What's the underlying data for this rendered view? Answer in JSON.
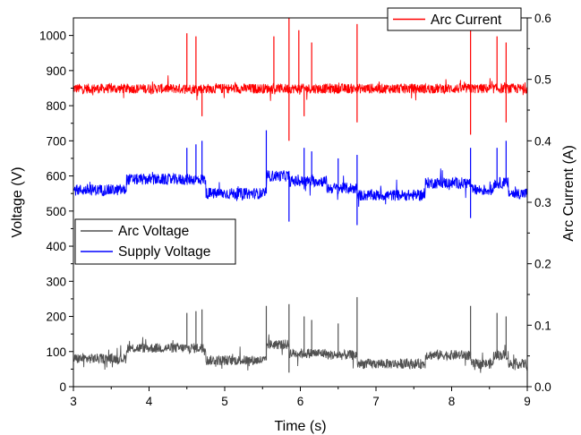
{
  "chart_data": {
    "type": "line",
    "title": "",
    "xlabel": "Time (s)",
    "ylabel": "Voltage (V)",
    "y2label": "Arc Current (A)",
    "xlim": [
      3,
      9
    ],
    "ylim": [
      0,
      1050
    ],
    "y2lim": [
      0,
      0.6
    ],
    "xticks": [
      "3",
      "4",
      "5",
      "6",
      "7",
      "8",
      "9"
    ],
    "yticks": [
      "0",
      "100",
      "200",
      "300",
      "400",
      "500",
      "600",
      "700",
      "800",
      "900",
      "1000"
    ],
    "y2ticks": [
      "0.0",
      "0.1",
      "0.2",
      "0.3",
      "0.4",
      "0.5",
      "0.6"
    ],
    "grid": false,
    "legend_right": {
      "position": "top-right",
      "entries": [
        "Arc Current"
      ]
    },
    "legend_left": {
      "position": "middle-left",
      "entries": [
        "Arc Voltage",
        "Supply Voltage"
      ]
    },
    "series": [
      {
        "name": "Arc Current",
        "axis": "right",
        "color": "#ff0000",
        "baseline_segments": [
          [
            3,
            9,
            0.485
          ]
        ],
        "noise": 0.008,
        "spikes": [
          {
            "x": 4.5,
            "y": 0.575
          },
          {
            "x": 4.62,
            "y": 0.57
          },
          {
            "x": 4.7,
            "y": 0.44
          },
          {
            "x": 5.65,
            "y": 0.57
          },
          {
            "x": 5.85,
            "y": 0.6
          },
          {
            "x": 5.85,
            "y": 0.4
          },
          {
            "x": 5.98,
            "y": 0.58
          },
          {
            "x": 6.05,
            "y": 0.44
          },
          {
            "x": 6.15,
            "y": 0.56
          },
          {
            "x": 6.75,
            "y": 0.59
          },
          {
            "x": 6.75,
            "y": 0.43
          },
          {
            "x": 8.25,
            "y": 0.58
          },
          {
            "x": 8.25,
            "y": 0.41
          },
          {
            "x": 8.6,
            "y": 0.57
          },
          {
            "x": 8.72,
            "y": 0.56
          },
          {
            "x": 8.72,
            "y": 0.43
          }
        ]
      },
      {
        "name": "Supply Voltage",
        "axis": "left",
        "color": "#0000ff",
        "baseline_segments": [
          [
            3,
            3.7,
            560
          ],
          [
            3.7,
            4.75,
            590
          ],
          [
            4.75,
            5.55,
            550
          ],
          [
            5.55,
            5.85,
            600
          ],
          [
            5.85,
            6.35,
            585
          ],
          [
            6.35,
            6.75,
            565
          ],
          [
            6.75,
            7.65,
            545
          ],
          [
            7.65,
            8.25,
            580
          ],
          [
            8.25,
            8.55,
            560
          ],
          [
            8.55,
            8.75,
            580
          ],
          [
            8.75,
            9,
            550
          ]
        ],
        "noise": 16,
        "spikes": [
          {
            "x": 4.5,
            "y": 680
          },
          {
            "x": 4.62,
            "y": 690
          },
          {
            "x": 4.7,
            "y": 700
          },
          {
            "x": 5.55,
            "y": 730
          },
          {
            "x": 5.85,
            "y": 470
          },
          {
            "x": 6.05,
            "y": 680
          },
          {
            "x": 6.15,
            "y": 670
          },
          {
            "x": 6.5,
            "y": 650
          },
          {
            "x": 6.75,
            "y": 460
          },
          {
            "x": 6.75,
            "y": 660
          },
          {
            "x": 8.25,
            "y": 680
          },
          {
            "x": 8.25,
            "y": 480
          },
          {
            "x": 8.6,
            "y": 680
          },
          {
            "x": 8.72,
            "y": 700
          }
        ]
      },
      {
        "name": "Arc Voltage",
        "axis": "left",
        "color": "#505050",
        "baseline_segments": [
          [
            3,
            3.7,
            80
          ],
          [
            3.7,
            4.75,
            110
          ],
          [
            4.75,
            5.55,
            75
          ],
          [
            5.55,
            5.85,
            120
          ],
          [
            5.85,
            6.35,
            95
          ],
          [
            6.35,
            6.75,
            90
          ],
          [
            6.75,
            7.65,
            65
          ],
          [
            7.65,
            8.25,
            90
          ],
          [
            8.25,
            8.55,
            65
          ],
          [
            8.55,
            8.75,
            90
          ],
          [
            8.75,
            9,
            65
          ]
        ],
        "noise": 14,
        "spikes": [
          {
            "x": 4.5,
            "y": 210
          },
          {
            "x": 4.62,
            "y": 215
          },
          {
            "x": 4.7,
            "y": 220
          },
          {
            "x": 5.55,
            "y": 230
          },
          {
            "x": 5.85,
            "y": 40
          },
          {
            "x": 5.85,
            "y": 235
          },
          {
            "x": 6.05,
            "y": 200
          },
          {
            "x": 6.15,
            "y": 190
          },
          {
            "x": 6.5,
            "y": 180
          },
          {
            "x": 6.75,
            "y": 255
          },
          {
            "x": 8.25,
            "y": 230
          },
          {
            "x": 8.6,
            "y": 210
          },
          {
            "x": 8.72,
            "y": 200
          }
        ]
      }
    ]
  }
}
